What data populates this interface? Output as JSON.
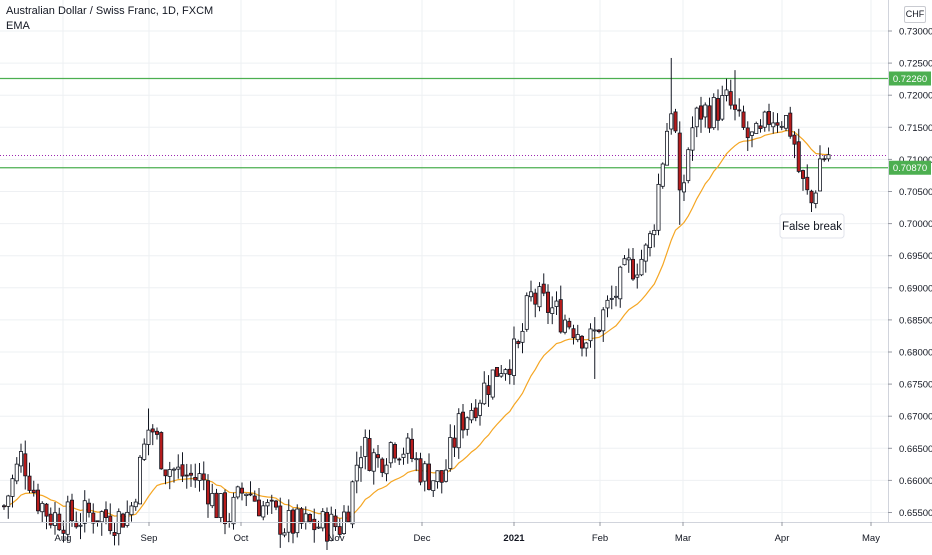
{
  "header": {
    "title": "Australian Dollar / Swiss Franc, 1D, FXCM",
    "indicator": "EMA",
    "currency": "CHF"
  },
  "colors": {
    "up": "#ffffff",
    "down": "#b71c1c",
    "wick": "#131722",
    "ema": "#f5a623",
    "level": "#4caf50",
    "current": "#9c27b0",
    "grid": "#eef0f3"
  },
  "chart_data": {
    "type": "candlestick",
    "x_axis_labels": [
      "Aug",
      "Sep",
      "Oct",
      "Nov",
      "Dec",
      "2021",
      "Feb",
      "Mar",
      "Apr",
      "May"
    ],
    "y_axis_labels": [
      "0.73000",
      "0.72500",
      "0.72000",
      "0.71500",
      "0.71000",
      "0.70500",
      "0.70000",
      "0.69500",
      "0.69000",
      "0.68500",
      "0.68000",
      "0.67500",
      "0.67000",
      "0.66500",
      "0.66000",
      "0.65500"
    ],
    "ylim": [
      0.6535,
      0.7316
    ],
    "horizontal_levels": [
      {
        "value": 0.7226,
        "label": "0.72260"
      },
      {
        "value": 0.7087,
        "label": "0.70870"
      }
    ],
    "current_price": 0.7106,
    "annotation": "False break",
    "series": [
      {
        "name": "EMA",
        "type": "line"
      }
    ]
  }
}
